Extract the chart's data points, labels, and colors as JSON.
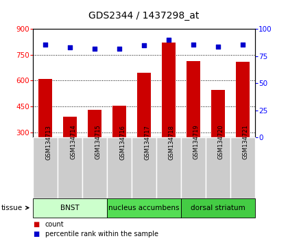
{
  "title": "GDS2344 / 1437298_at",
  "samples": [
    "GSM134713",
    "GSM134714",
    "GSM134715",
    "GSM134716",
    "GSM134717",
    "GSM134718",
    "GSM134719",
    "GSM134720",
    "GSM134721"
  ],
  "counts": [
    610,
    390,
    430,
    455,
    645,
    820,
    715,
    545,
    710
  ],
  "percentiles": [
    86,
    83,
    82,
    82,
    85,
    90,
    86,
    84,
    86
  ],
  "ylim_left": [
    270,
    900
  ],
  "ylim_right": [
    0,
    100
  ],
  "yticks_left": [
    300,
    450,
    600,
    750,
    900
  ],
  "yticks_right": [
    0,
    25,
    50,
    75,
    100
  ],
  "bar_color": "#cc0000",
  "dot_color": "#0000cc",
  "tissue_groups": [
    {
      "label": "BNST",
      "start": 0,
      "end": 3,
      "color": "#ccffcc"
    },
    {
      "label": "nucleus accumbens",
      "start": 3,
      "end": 6,
      "color": "#55dd55"
    },
    {
      "label": "dorsal striatum",
      "start": 6,
      "end": 9,
      "color": "#44cc44"
    }
  ],
  "legend_items": [
    {
      "color": "#cc0000",
      "label": "count"
    },
    {
      "color": "#0000cc",
      "label": "percentile rank within the sample"
    }
  ],
  "sample_box_color": "#cccccc",
  "fig_width": 4.2,
  "fig_height": 3.54,
  "dpi": 100
}
